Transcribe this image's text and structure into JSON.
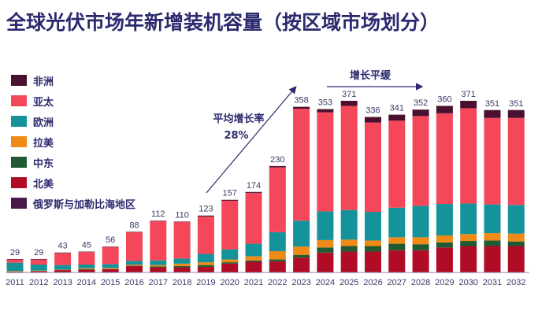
{
  "title": "全球光伏市场年新增装机容量（按区域市场划分）",
  "legend": [
    {
      "name": "非洲",
      "color": "#4a1030"
    },
    {
      "name": "亚太",
      "color": "#f4475a"
    },
    {
      "name": "欧洲",
      "color": "#14939a"
    },
    {
      "name": "拉美",
      "color": "#ef8a17"
    },
    {
      "name": "中东",
      "color": "#1f5a32"
    },
    {
      "name": "北美",
      "color": "#b00c26"
    },
    {
      "name": "俄罗斯与加勒比海地区",
      "color": "#4a1846"
    }
  ],
  "annotations": {
    "growth_label": "平均增长率",
    "growth_value": "28%",
    "plateau_label": "增长平缓"
  },
  "chart_data": {
    "type": "bar",
    "stacked": true,
    "title": "全球光伏市场年新增装机容量（按区域市场划分）",
    "xlabel": "",
    "ylabel": "",
    "ylim": [
      0,
      400
    ],
    "grid": false,
    "legend_position": "left",
    "categories": [
      "2011",
      "2012",
      "2013",
      "2014",
      "2015",
      "2016",
      "2017",
      "2018",
      "2019",
      "2020",
      "2021",
      "2022",
      "2023",
      "2024",
      "2025",
      "2026",
      "2027",
      "2028",
      "2029",
      "2030",
      "2031",
      "2032"
    ],
    "totals": [
      29,
      29,
      43,
      45,
      56,
      88,
      112,
      110,
      123,
      157,
      174,
      230,
      358,
      353,
      371,
      336,
      341,
      352,
      360,
      371,
      351,
      351
    ],
    "series": [
      {
        "name": "北美",
        "color": "#b00c26",
        "values": [
          2,
          3,
          5,
          6,
          7,
          14,
          11,
          11,
          12,
          19,
          23,
          24,
          32,
          43,
          45,
          45,
          48,
          48,
          54,
          57,
          57,
          57
        ]
      },
      {
        "name": "中东",
        "color": "#1f5a32",
        "values": [
          0,
          0,
          0,
          1,
          1,
          1,
          2,
          3,
          4,
          3,
          3,
          4,
          6,
          11,
          12,
          12,
          14,
          13,
          11,
          11,
          12,
          10
        ]
      },
      {
        "name": "拉美",
        "color": "#ef8a17",
        "values": [
          1,
          1,
          1,
          2,
          2,
          2,
          3,
          5,
          6,
          6,
          9,
          18,
          18,
          16,
          14,
          12,
          14,
          15,
          15,
          15,
          16,
          17
        ]
      },
      {
        "name": "欧洲",
        "color": "#14939a",
        "values": [
          18,
          13,
          10,
          8,
          8,
          8,
          10,
          11,
          18,
          22,
          27,
          41,
          56,
          62,
          64,
          62,
          64,
          68,
          68,
          66,
          62,
          62
        ]
      },
      {
        "name": "亚太",
        "color": "#f4475a",
        "values": [
          7,
          11,
          26,
          27,
          37,
          62,
          85,
          79,
          81,
          105,
          110,
          140,
          242,
          214,
          225,
          193,
          188,
          194,
          196,
          206,
          187,
          188
        ]
      },
      {
        "name": "非洲",
        "color": "#4a1030",
        "values": [
          1,
          1,
          1,
          1,
          1,
          1,
          1,
          1,
          2,
          2,
          2,
          3,
          4,
          7,
          11,
          12,
          13,
          14,
          16,
          16,
          17,
          17
        ]
      }
    ],
    "annotations": [
      {
        "text": "平均增长率 28%",
        "type": "arrow",
        "from": "2019",
        "to": "2023"
      },
      {
        "text": "增长平缓",
        "type": "arrow",
        "from": "2024",
        "to": "2028"
      }
    ]
  }
}
